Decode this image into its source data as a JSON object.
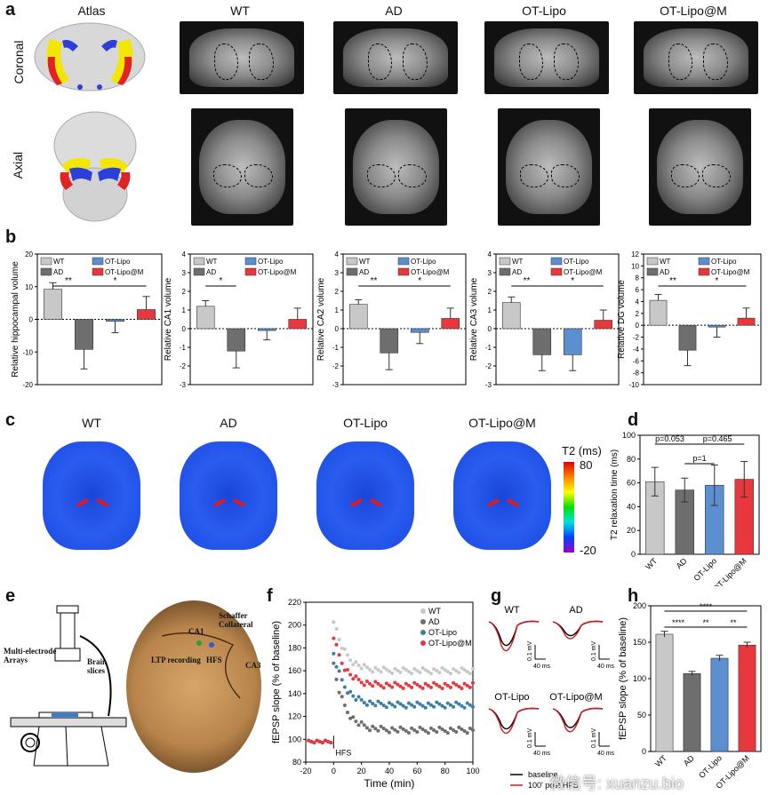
{
  "panel_labels": {
    "a": "a",
    "b": "b",
    "c": "c",
    "d": "d",
    "e": "e",
    "f": "f",
    "g": "g",
    "h": "h"
  },
  "panel_a": {
    "columns": [
      "Atlas",
      "WT",
      "AD",
      "OT-Lipo",
      "OT-Lipo@M"
    ],
    "rows": [
      "Coronal",
      "Axial"
    ]
  },
  "legend_groups": [
    "WT",
    "AD",
    "OT-Lipo",
    "OT-Lipo@M"
  ],
  "colors": {
    "WT": "#c8c8c8",
    "AD": "#6e6e6e",
    "OT-Lipo": "#5b8fd0",
    "OT-Lipo@M": "#e8383d"
  },
  "panel_c": {
    "titles": [
      "WT",
      "AD",
      "OT-Lipo",
      "OT-Lipo@M"
    ],
    "colorbar_title": "T2 (ms)",
    "colorbar_max": "80",
    "colorbar_min": "-20"
  },
  "panel_e": {
    "labels": {
      "multi": "Multi-electrode Arrays",
      "brain": "Brain slices",
      "ca1": "CA1",
      "schaffer": "Schaffer Collateral",
      "ltp": "LTP recording",
      "hfs": "HFS",
      "ca3": "CA3"
    }
  },
  "panel_g": {
    "titles": [
      "WT",
      "AD",
      "OT-Lipo",
      "OT-Lipo@M"
    ],
    "scale_mv": "0.1 mV",
    "scale_ms": "40 ms",
    "legend": [
      "baseline",
      "100' post HFS"
    ]
  },
  "watermark": "微信号: xuanzu.bio",
  "chart_data": [
    {
      "id": "b1",
      "type": "bar",
      "categories": [
        "WT",
        "AD",
        "OT-Lipo",
        "OT-Lipo@M"
      ],
      "values": [
        9.2,
        -9.2,
        -0.6,
        3.0
      ],
      "errors": [
        2.0,
        6.0,
        3.5,
        4.0
      ],
      "ylabel": "Relative hippocampal volume",
      "ylim": [
        -20,
        20
      ],
      "ticks": [
        "20",
        "10",
        "0",
        "-10",
        "-20"
      ],
      "tick_values": [
        20,
        10,
        0,
        -10,
        -20
      ],
      "sig": [
        "**",
        "*"
      ]
    },
    {
      "id": "b2",
      "type": "bar",
      "categories": [
        "WT",
        "AD",
        "OT-Lipo",
        "OT-Lipo@M"
      ],
      "values": [
        1.2,
        -1.2,
        -0.1,
        0.5
      ],
      "errors": [
        0.3,
        0.9,
        0.5,
        0.6
      ],
      "ylabel": "Relative CA1 volume",
      "ylim": [
        -3,
        4
      ],
      "ticks": [
        "4",
        "3",
        "2",
        "1",
        "0",
        "-1",
        "-2",
        "-3"
      ],
      "tick_values": [
        4,
        3,
        2,
        1,
        0,
        -1,
        -2,
        -3
      ],
      "sig": [
        "*"
      ]
    },
    {
      "id": "b3",
      "type": "bar",
      "categories": [
        "WT",
        "AD",
        "OT-Lipo",
        "OT-Lipo@M"
      ],
      "values": [
        1.3,
        -1.3,
        -0.2,
        0.55
      ],
      "errors": [
        0.25,
        0.9,
        0.6,
        0.55
      ],
      "ylabel": "Relative CA2 volume",
      "ylim": [
        -3,
        4
      ],
      "ticks": [
        "4",
        "3",
        "2",
        "1",
        "0",
        "-1",
        "-2",
        "-3"
      ],
      "tick_values": [
        4,
        3,
        2,
        1,
        0,
        -1,
        -2,
        -3
      ],
      "sig": [
        "**",
        "*"
      ]
    },
    {
      "id": "b4",
      "type": "bar",
      "categories": [
        "WT",
        "AD",
        "OT-Lipo",
        "OT-Lipo@M"
      ],
      "values": [
        1.4,
        -1.4,
        -1.4,
        0.45
      ],
      "errors": [
        0.3,
        0.85,
        0.85,
        0.55
      ],
      "ylabel": "Relative CA3 volume",
      "ylim": [
        -3,
        4
      ],
      "ticks": [
        "4",
        "3",
        "2",
        "1",
        "0",
        "-1",
        "-2",
        "-3"
      ],
      "tick_values": [
        4,
        3,
        2,
        1,
        0,
        -1,
        -2,
        -3
      ],
      "sig": [
        "**",
        "*"
      ]
    },
    {
      "id": "b5",
      "type": "bar",
      "categories": [
        "WT",
        "AD",
        "OT-Lipo",
        "OT-Lipo@M"
      ],
      "values": [
        4.2,
        -4.2,
        -0.3,
        1.2
      ],
      "errors": [
        1.0,
        2.6,
        1.7,
        1.7
      ],
      "ylabel": "Relative DG volume",
      "ylim": [
        -10,
        12
      ],
      "ticks": [
        "12",
        "10",
        "8",
        "6",
        "4",
        "2",
        "0",
        "-2",
        "-4",
        "-6",
        "-8",
        "-10"
      ],
      "tick_values": [
        12,
        10,
        8,
        6,
        4,
        2,
        0,
        -2,
        -4,
        -6,
        -8,
        -10
      ],
      "sig": [
        "**",
        "*"
      ]
    },
    {
      "id": "d",
      "type": "bar",
      "categories": [
        "WT",
        "AD",
        "OT-Lipo",
        "OT-Lipo@M"
      ],
      "values": [
        61,
        54,
        58,
        63
      ],
      "errors": [
        12,
        10,
        17,
        15
      ],
      "ylabel": "T2 relaxation time (ms)",
      "ylim": [
        0,
        100
      ],
      "ticks": [
        "0",
        "20",
        "40",
        "60",
        "80",
        "100"
      ],
      "tick_values": [
        0,
        20,
        40,
        60,
        80,
        100
      ],
      "annotations": [
        "p=0.053",
        "p=0.465",
        "p=1"
      ]
    },
    {
      "id": "f",
      "type": "scatter",
      "xlabel": "Time (min)",
      "ylabel": "fEPSP slope (% of baseline)",
      "xlim": [
        -20,
        100
      ],
      "ylim": [
        80,
        220
      ],
      "xticks": [
        "-20",
        "0",
        "20",
        "40",
        "60",
        "80",
        "100"
      ],
      "xtick_values": [
        -20,
        0,
        20,
        40,
        60,
        80,
        100
      ],
      "yticks": [
        "80",
        "100",
        "120",
        "140",
        "160",
        "180",
        "200",
        "220"
      ],
      "ytick_values": [
        80,
        100,
        120,
        140,
        160,
        180,
        200,
        220
      ],
      "event": "HFS",
      "series": [
        {
          "name": "WT",
          "baseline": 100,
          "peak": 205,
          "plateau": 160
        },
        {
          "name": "AD",
          "baseline": 100,
          "peak": 165,
          "plateau": 108
        },
        {
          "name": "OT-Lipo",
          "baseline": 100,
          "peak": 175,
          "plateau": 130
        },
        {
          "name": "OT-Lipo@M",
          "baseline": 100,
          "peak": 190,
          "plateau": 147
        }
      ]
    },
    {
      "id": "h",
      "type": "bar",
      "categories": [
        "WT",
        "AD",
        "OT-Lipo",
        "OT-Lipo@M"
      ],
      "values": [
        161,
        107,
        128,
        146
      ],
      "errors": [
        4,
        3,
        4,
        4
      ],
      "ylabel": "fEPSP slope (% of baseline)",
      "ylim": [
        0,
        200
      ],
      "ticks": [
        "0",
        "50",
        "100",
        "150",
        "200"
      ],
      "tick_values": [
        0,
        50,
        100,
        150,
        200
      ],
      "sig": [
        "****",
        "**",
        "**",
        "****"
      ]
    }
  ]
}
